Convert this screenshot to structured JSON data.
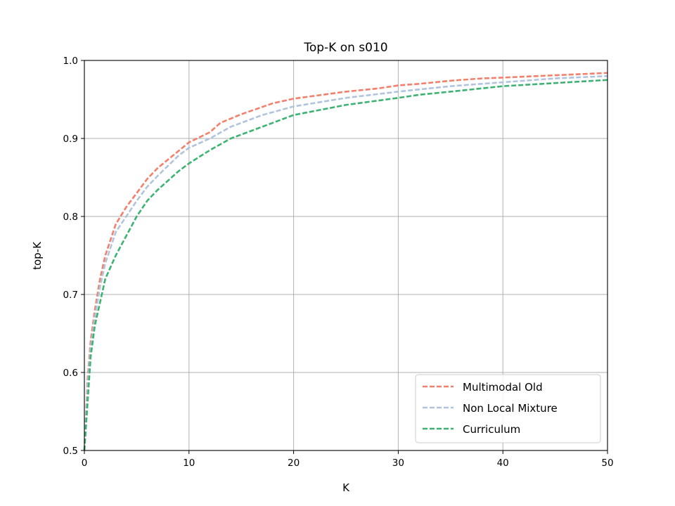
{
  "chart_data": {
    "type": "line",
    "title": "Top-K on s010",
    "xlabel": "K",
    "ylabel": "top-K",
    "xlim": [
      0,
      50
    ],
    "ylim": [
      0.5,
      1.0
    ],
    "xticks": [
      0,
      10,
      20,
      30,
      40,
      50
    ],
    "xtick_labels": [
      "0",
      "10",
      "20",
      "30",
      "40",
      "50"
    ],
    "yticks": [
      0.5,
      0.6,
      0.7,
      0.8,
      0.9,
      1.0
    ],
    "ytick_labels": [
      "0.5",
      "0.6",
      "0.7",
      "0.8",
      "0.9",
      "1.0"
    ],
    "grid": true,
    "legend_position": "lower-right",
    "series": [
      {
        "name": "Multimodal Old",
        "color": "#f47f6b",
        "line_style": "dashed",
        "x": [
          0,
          0.3,
          0.6,
          1,
          1.5,
          2,
          3,
          4,
          5,
          6,
          7,
          8,
          9,
          10,
          12,
          13,
          15,
          18,
          20,
          25,
          28,
          30,
          32,
          35,
          38,
          40,
          45,
          50
        ],
        "y": [
          0.5,
          0.59,
          0.64,
          0.68,
          0.72,
          0.75,
          0.79,
          0.812,
          0.83,
          0.848,
          0.862,
          0.873,
          0.884,
          0.895,
          0.908,
          0.92,
          0.931,
          0.945,
          0.951,
          0.96,
          0.964,
          0.968,
          0.97,
          0.974,
          0.977,
          0.978,
          0.981,
          0.984
        ]
      },
      {
        "name": "Non Local Mixture",
        "color": "#b0c4de",
        "line_style": "dashed",
        "x": [
          0,
          0.3,
          0.6,
          1,
          1.5,
          2,
          3,
          4,
          5,
          6,
          7,
          8,
          9,
          10,
          12,
          14,
          17,
          20,
          25,
          30,
          35,
          40,
          45,
          50
        ],
        "y": [
          0.5,
          0.58,
          0.63,
          0.67,
          0.71,
          0.74,
          0.78,
          0.8,
          0.82,
          0.838,
          0.852,
          0.865,
          0.878,
          0.888,
          0.9,
          0.915,
          0.93,
          0.941,
          0.952,
          0.96,
          0.967,
          0.972,
          0.977,
          0.98
        ]
      },
      {
        "name": "Curriculum",
        "color": "#3cb371",
        "line_style": "dashed",
        "x": [
          0,
          0.3,
          0.6,
          1,
          1.5,
          2,
          3,
          4,
          5,
          6,
          7,
          8,
          9,
          10,
          12,
          14,
          17,
          20,
          25,
          30,
          32,
          35,
          40,
          45,
          50
        ],
        "y": [
          0.5,
          0.56,
          0.62,
          0.66,
          0.69,
          0.72,
          0.75,
          0.775,
          0.8,
          0.82,
          0.834,
          0.846,
          0.858,
          0.868,
          0.885,
          0.9,
          0.915,
          0.93,
          0.943,
          0.952,
          0.956,
          0.96,
          0.967,
          0.971,
          0.975
        ]
      }
    ]
  }
}
